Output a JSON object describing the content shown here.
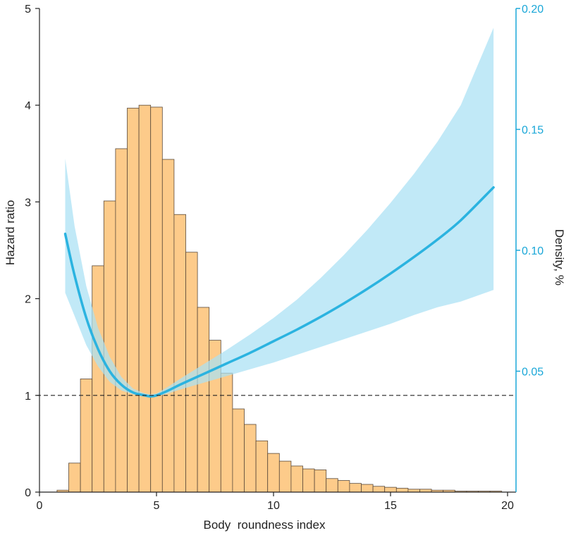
{
  "chart_data": {
    "type": "line",
    "xlabel": "Body  roundness index",
    "ylabel": "Hazard ratio",
    "y2label": "Density, %",
    "xlim": [
      0,
      20
    ],
    "ylim": [
      0,
      5
    ],
    "y2lim": [
      0,
      0.2
    ],
    "xticks": [
      "0",
      "5",
      "10",
      "15",
      "20"
    ],
    "yticks": [
      "0",
      "1",
      "2",
      "3",
      "4",
      "5"
    ],
    "y2ticks": [
      "0.05",
      "0.10",
      "0.15",
      "0.20"
    ],
    "reference_line_y": 1,
    "colors": {
      "histogram_fill": "#fdcb8a",
      "histogram_edge": "#5a4a3a",
      "curve": "#2bb3e0",
      "ci_band": "#a9e1f4",
      "right_axis": "#1aa7d8"
    },
    "histogram": {
      "bin_width": 0.5,
      "bin_starts": [
        0.75,
        1.25,
        1.75,
        2.25,
        2.75,
        3.25,
        3.75,
        4.25,
        4.75,
        5.25,
        5.75,
        6.25,
        6.75,
        7.25,
        7.75,
        8.25,
        8.75,
        9.25,
        9.75,
        10.25,
        10.75,
        11.25,
        11.75,
        12.25,
        12.75,
        13.25,
        13.75,
        14.25,
        14.75,
        15.25,
        15.75,
        16.25,
        16.75,
        17.25,
        17.75,
        18.25,
        18.75,
        19.25
      ],
      "heights": [
        0.02,
        0.3,
        1.17,
        2.34,
        3.01,
        3.55,
        3.97,
        4.0,
        3.98,
        3.44,
        2.87,
        2.48,
        1.91,
        1.57,
        1.23,
        0.86,
        0.7,
        0.53,
        0.4,
        0.32,
        0.27,
        0.24,
        0.23,
        0.14,
        0.12,
        0.09,
        0.08,
        0.06,
        0.05,
        0.04,
        0.03,
        0.03,
        0.02,
        0.02,
        0.01,
        0.01,
        0.01,
        0.01
      ]
    },
    "series": [
      {
        "x": [
          1.1,
          1.5,
          2,
          2.5,
          3,
          3.5,
          4,
          4.5,
          4.75,
          5,
          5.5,
          6,
          7,
          8,
          9,
          10,
          11,
          12,
          13,
          14,
          15,
          16,
          17,
          18,
          19.4
        ],
        "y": [
          2.67,
          2.24,
          1.8,
          1.48,
          1.25,
          1.11,
          1.03,
          1.0,
          0.99,
          1.0,
          1.05,
          1.11,
          1.22,
          1.33,
          1.44,
          1.56,
          1.68,
          1.81,
          1.95,
          2.1,
          2.26,
          2.43,
          2.61,
          2.81,
          3.15
        ],
        "ci_lower": [
          2.06,
          1.82,
          1.52,
          1.3,
          1.14,
          1.05,
          1.01,
          0.99,
          0.98,
          0.99,
          1.02,
          1.06,
          1.13,
          1.2,
          1.27,
          1.34,
          1.42,
          1.5,
          1.58,
          1.66,
          1.74,
          1.83,
          1.91,
          1.97,
          2.09
        ],
        "ci_upper": [
          3.45,
          2.75,
          2.13,
          1.7,
          1.4,
          1.19,
          1.07,
          1.02,
          1.01,
          1.02,
          1.09,
          1.17,
          1.32,
          1.47,
          1.63,
          1.8,
          1.99,
          2.21,
          2.45,
          2.71,
          2.99,
          3.29,
          3.62,
          4.0,
          4.8
        ]
      }
    ]
  }
}
